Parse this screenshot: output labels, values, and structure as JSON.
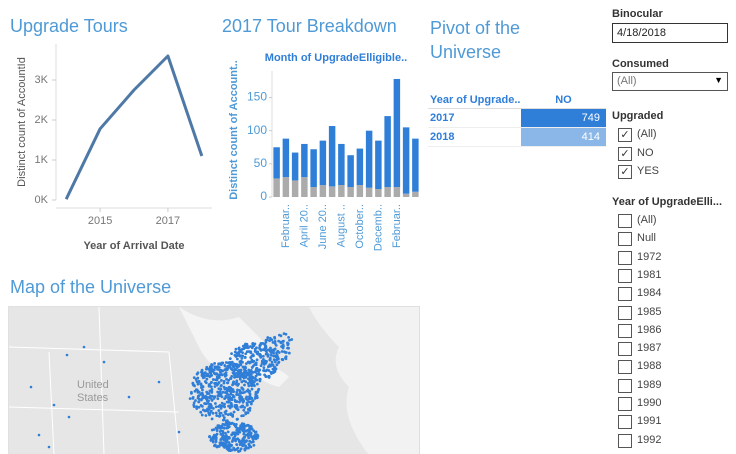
{
  "chart_data": [
    {
      "type": "line",
      "title": "Upgrade Tours",
      "x_label": "Year of Arrival Date",
      "y_label": "Distinct count of AccountId",
      "x": [
        2014,
        2015,
        2016,
        2017,
        2018
      ],
      "values": [
        20,
        1780,
        2750,
        3600,
        1100
      ],
      "color": "#4e79a7",
      "xlim": [
        2013.7,
        2018.3
      ],
      "xticks": [
        2015,
        2017
      ],
      "ylim": [
        0,
        3900
      ],
      "yticks": [
        {
          "value": 0,
          "label": "0K"
        },
        {
          "value": 1000,
          "label": "1K"
        },
        {
          "value": 2000,
          "label": "2K"
        },
        {
          "value": 3000,
          "label": "3K"
        }
      ]
    },
    {
      "type": "bar",
      "stacked": true,
      "title": "2017 Tour Breakdown",
      "header": "Month of UpgradeElligible..",
      "y_label": "Distinct count of Account..",
      "categories": [
        null,
        "Februar..",
        null,
        "April 20..",
        null,
        "June 20..",
        null,
        "August ..",
        null,
        "October..",
        null,
        "Decemb..",
        null,
        "Februar..",
        null,
        null
      ],
      "series": [
        {
          "color": "#ababab",
          "values": [
            28,
            30,
            25,
            30,
            15,
            18,
            16,
            18,
            15,
            18,
            14,
            12,
            15,
            15,
            5,
            8
          ]
        },
        {
          "color": "#2f7ed8",
          "values": [
            47,
            58,
            42,
            50,
            57,
            67,
            91,
            62,
            48,
            55,
            86,
            73,
            107,
            163,
            100,
            80
          ]
        }
      ],
      "ylim": [
        0,
        190
      ],
      "yticks": [
        0,
        50,
        100,
        150
      ]
    }
  ],
  "pivot": {
    "title": "Pivot of the Universe",
    "header": [
      "Year of Upgrade..",
      "NO"
    ],
    "rows": [
      [
        "2017",
        "749"
      ],
      [
        "2018",
        "414"
      ]
    ],
    "cell_colors": [
      "#2f7ed8",
      "#8ab7e8"
    ]
  },
  "map": {
    "title": "Map of the Universe",
    "label": "United States"
  },
  "filters": {
    "binocular": {
      "label": "Binocular",
      "value": "4/18/2018"
    },
    "consumed": {
      "label": "Consumed",
      "value": "(All)"
    },
    "upgraded": {
      "label": "Upgraded",
      "items": [
        {
          "text": "(All)",
          "checked": true
        },
        {
          "text": "NO",
          "checked": true
        },
        {
          "text": "YES",
          "checked": true
        }
      ]
    },
    "year": {
      "label": "Year of UpgradeElli...",
      "items": [
        {
          "text": "(All)",
          "checked": false
        },
        {
          "text": "Null",
          "checked": false
        },
        {
          "text": "1972",
          "checked": false
        },
        {
          "text": "1981",
          "checked": false
        },
        {
          "text": "1984",
          "checked": false
        },
        {
          "text": "1985",
          "checked": false
        },
        {
          "text": "1986",
          "checked": false
        },
        {
          "text": "1987",
          "checked": false
        },
        {
          "text": "1988",
          "checked": false
        },
        {
          "text": "1989",
          "checked": false
        },
        {
          "text": "1990",
          "checked": false
        },
        {
          "text": "1991",
          "checked": false
        },
        {
          "text": "1992",
          "checked": false
        }
      ]
    }
  }
}
